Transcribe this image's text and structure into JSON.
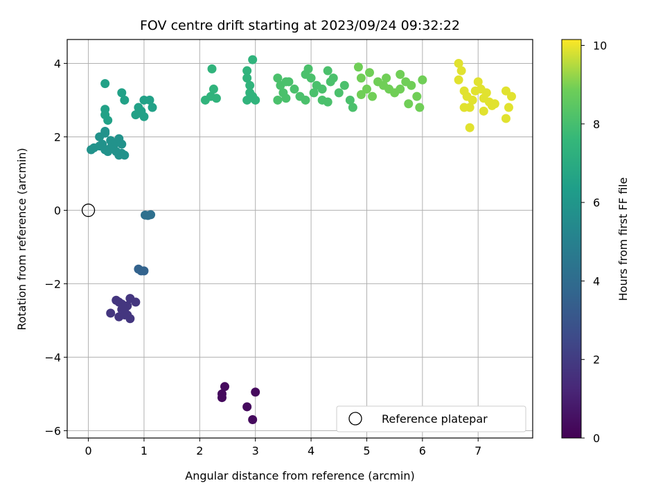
{
  "chart_data": {
    "type": "scatter",
    "title": "FOV centre drift starting at 2023/09/24 09:32:22",
    "xlabel": "Angular distance from reference (arcmin)",
    "ylabel": "Rotation from reference (arcmin)",
    "xlim": [
      -0.38,
      7.98
    ],
    "ylim": [
      -6.2,
      4.65
    ],
    "xticks": [
      0,
      1,
      2,
      3,
      4,
      5,
      6,
      7
    ],
    "yticks": [
      -6,
      -4,
      -2,
      0,
      2,
      4
    ],
    "grid": true,
    "colorbar": {
      "label": "Hours from first FF file",
      "range": [
        0,
        10.15
      ],
      "ticks": [
        0,
        2,
        4,
        6,
        8,
        10
      ],
      "colormap": "viridis"
    },
    "legend": {
      "placement": "lower-right",
      "entries": [
        "Reference platepar"
      ]
    },
    "reference_point": {
      "x": 0,
      "y": 0
    },
    "clusters": [
      {
        "hours": 0.3,
        "points": [
          [
            2.45,
            -4.8
          ],
          [
            2.4,
            -5.0
          ],
          [
            2.4,
            -5.1
          ],
          [
            2.85,
            -5.35
          ],
          [
            3.0,
            -4.95
          ],
          [
            2.95,
            -5.7
          ]
        ]
      },
      {
        "hours": 1.8,
        "points": [
          [
            0.5,
            -2.45
          ],
          [
            0.55,
            -2.5
          ],
          [
            0.7,
            -2.6
          ],
          [
            0.75,
            -2.4
          ],
          [
            0.85,
            -2.5
          ],
          [
            0.4,
            -2.8
          ],
          [
            0.55,
            -2.9
          ],
          [
            0.6,
            -2.7
          ],
          [
            0.65,
            -2.85
          ],
          [
            0.75,
            -2.95
          ],
          [
            0.65,
            -2.7
          ],
          [
            0.6,
            -2.55
          ],
          [
            0.7,
            -2.85
          ]
        ]
      },
      {
        "hours": 3.6,
        "points": [
          [
            0.9,
            -1.6
          ],
          [
            0.95,
            -1.65
          ],
          [
            1.0,
            -1.65
          ]
        ]
      },
      {
        "hours": 4.2,
        "points": [
          [
            1.02,
            -0.13
          ],
          [
            1.07,
            -0.14
          ],
          [
            1.12,
            -0.12
          ]
        ]
      },
      {
        "hours": 5.8,
        "points": [
          [
            0.05,
            1.65
          ],
          [
            0.1,
            1.7
          ],
          [
            0.2,
            1.75
          ],
          [
            0.25,
            1.8
          ],
          [
            0.3,
            1.65
          ],
          [
            0.35,
            1.6
          ],
          [
            0.4,
            1.7
          ],
          [
            0.45,
            1.75
          ],
          [
            0.5,
            1.6
          ],
          [
            0.55,
            1.5
          ],
          [
            0.6,
            1.55
          ],
          [
            0.65,
            1.5
          ],
          [
            0.2,
            2.0
          ],
          [
            0.3,
            2.1
          ],
          [
            0.4,
            1.9
          ],
          [
            0.5,
            1.85
          ],
          [
            0.55,
            1.95
          ],
          [
            0.6,
            1.8
          ],
          [
            0.3,
            2.15
          ]
        ]
      },
      {
        "hours": 6.5,
        "points": [
          [
            0.3,
            2.6
          ],
          [
            0.3,
            2.75
          ],
          [
            0.35,
            2.45
          ],
          [
            0.3,
            3.45
          ],
          [
            0.6,
            3.2
          ],
          [
            0.65,
            3.0
          ],
          [
            0.85,
            2.6
          ],
          [
            0.9,
            2.8
          ],
          [
            0.95,
            2.7
          ],
          [
            1.0,
            2.55
          ],
          [
            1.0,
            3.0
          ],
          [
            1.1,
            3.0
          ],
          [
            1.15,
            2.8
          ],
          [
            0.9,
            2.65
          ]
        ]
      },
      {
        "hours": 7.4,
        "points": [
          [
            2.1,
            3.0
          ],
          [
            2.2,
            3.1
          ],
          [
            2.25,
            3.3
          ],
          [
            2.3,
            3.05
          ],
          [
            2.22,
            3.85
          ],
          [
            2.85,
            3.8
          ],
          [
            2.85,
            3.6
          ],
          [
            2.9,
            3.4
          ],
          [
            2.9,
            3.2
          ],
          [
            2.85,
            3.0
          ],
          [
            2.95,
            3.1
          ],
          [
            3.0,
            3.0
          ],
          [
            2.95,
            4.1
          ]
        ]
      },
      {
        "hours": 8.1,
        "points": [
          [
            3.4,
            3.6
          ],
          [
            3.45,
            3.4
          ],
          [
            3.5,
            3.2
          ],
          [
            3.4,
            3.0
          ],
          [
            3.55,
            3.05
          ],
          [
            3.6,
            3.5
          ],
          [
            3.7,
            3.3
          ],
          [
            3.8,
            3.1
          ],
          [
            3.9,
            3.7
          ],
          [
            3.95,
            3.85
          ],
          [
            4.0,
            3.6
          ],
          [
            4.1,
            3.4
          ],
          [
            4.05,
            3.2
          ],
          [
            3.9,
            3.0
          ],
          [
            4.2,
            3.3
          ],
          [
            4.3,
            3.8
          ],
          [
            4.35,
            3.5
          ],
          [
            4.4,
            3.6
          ],
          [
            4.5,
            3.2
          ],
          [
            4.6,
            3.4
          ],
          [
            4.2,
            3.0
          ],
          [
            4.3,
            2.95
          ],
          [
            4.7,
            3.0
          ],
          [
            4.75,
            2.8
          ],
          [
            3.55,
            3.5
          ]
        ]
      },
      {
        "hours": 8.9,
        "points": [
          [
            4.85,
            3.9
          ],
          [
            4.9,
            3.6
          ],
          [
            5.0,
            3.3
          ],
          [
            5.05,
            3.75
          ],
          [
            5.1,
            3.1
          ],
          [
            5.2,
            3.5
          ],
          [
            5.3,
            3.4
          ],
          [
            5.35,
            3.6
          ],
          [
            5.5,
            3.2
          ],
          [
            5.6,
            3.7
          ],
          [
            5.7,
            3.5
          ],
          [
            5.8,
            3.4
          ],
          [
            5.75,
            2.9
          ],
          [
            5.9,
            3.1
          ],
          [
            6.0,
            3.55
          ],
          [
            5.95,
            2.8
          ],
          [
            4.9,
            3.15
          ],
          [
            5.4,
            3.3
          ],
          [
            5.6,
            3.3
          ]
        ]
      },
      {
        "hours": 9.9,
        "points": [
          [
            6.65,
            4.0
          ],
          [
            6.7,
            3.8
          ],
          [
            6.65,
            3.55
          ],
          [
            6.75,
            3.25
          ],
          [
            6.8,
            3.1
          ],
          [
            6.85,
            2.8
          ],
          [
            6.75,
            2.8
          ],
          [
            6.85,
            2.25
          ],
          [
            6.9,
            3.0
          ],
          [
            7.0,
            3.5
          ],
          [
            7.05,
            3.3
          ],
          [
            7.1,
            3.05
          ],
          [
            7.1,
            2.7
          ],
          [
            7.15,
            3.2
          ],
          [
            7.2,
            2.95
          ],
          [
            7.25,
            2.85
          ],
          [
            7.3,
            2.9
          ],
          [
            7.5,
            2.5
          ],
          [
            7.5,
            3.25
          ],
          [
            7.55,
            2.8
          ],
          [
            7.6,
            3.1
          ],
          [
            6.95,
            3.25
          ]
        ]
      }
    ]
  }
}
